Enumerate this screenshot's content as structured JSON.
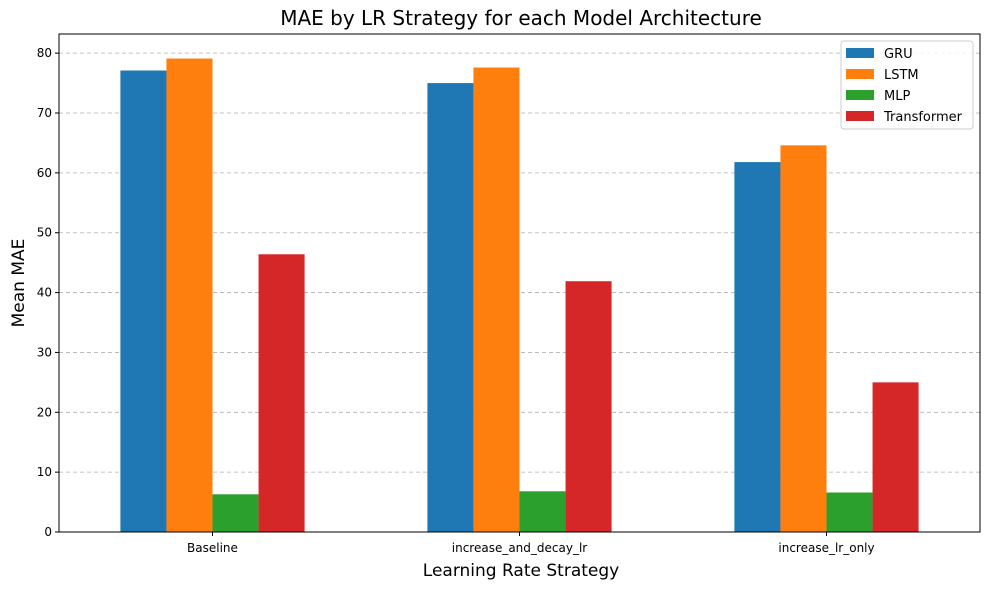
{
  "chart_data": {
    "type": "bar",
    "title": "MAE by LR Strategy for each Model Architecture",
    "xlabel": "Learning Rate Strategy",
    "ylabel": "Mean MAE",
    "categories": [
      "Baseline",
      "increase_and_decay_lr",
      "increase_lr_only"
    ],
    "series": [
      {
        "name": "GRU",
        "color": "#1f77b4",
        "values": [
          77.1,
          75.0,
          61.8
        ]
      },
      {
        "name": "LSTM",
        "color": "#ff7f0e",
        "values": [
          79.1,
          77.6,
          64.6
        ]
      },
      {
        "name": "MLP",
        "color": "#2ca02c",
        "values": [
          6.3,
          6.8,
          6.6
        ]
      },
      {
        "name": "Transformer",
        "color": "#d62728",
        "values": [
          46.4,
          41.9,
          25.0
        ]
      }
    ],
    "ylim": [
      0,
      83.2
    ],
    "yticks": [
      0,
      10,
      20,
      30,
      40,
      50,
      60,
      70,
      80
    ],
    "grid": "y-dashed",
    "legend_position": "top-right"
  }
}
